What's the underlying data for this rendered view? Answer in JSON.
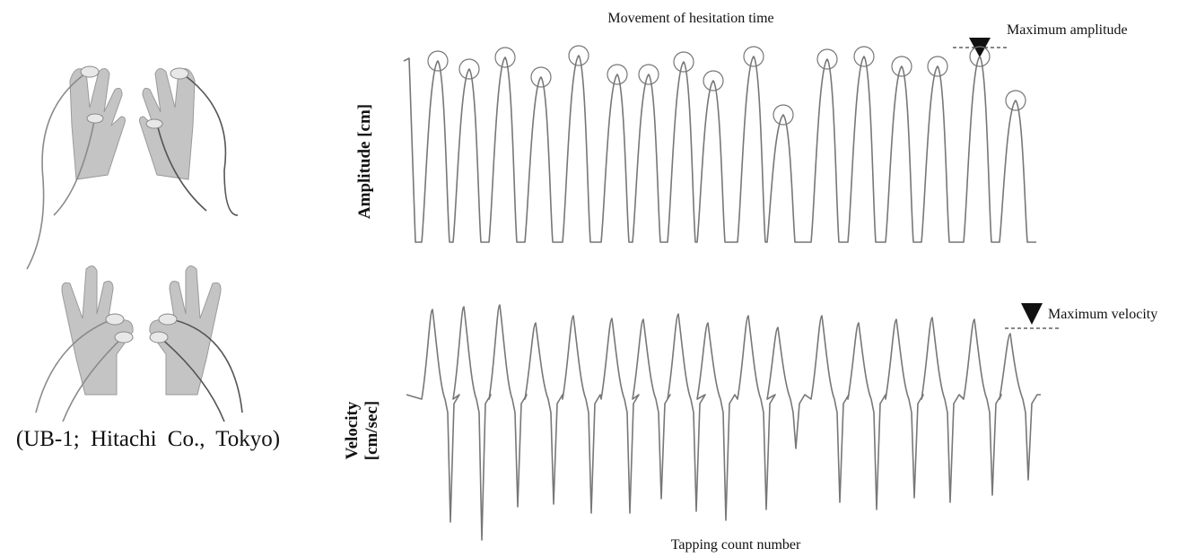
{
  "figure": {
    "title": "Movement of hesitation time",
    "device_caption": "(UB-1; Hitachi Co., Tokyo)",
    "amplitude_panel": {
      "y_label": "Amplitude [cm]",
      "annotation": "Maximum amplitude"
    },
    "velocity_panel": {
      "y_label_lines": [
        "Velocity",
        "[cm/sec]"
      ],
      "annotation": "Maximum velocity"
    },
    "x_label": "Tapping count number"
  }
}
